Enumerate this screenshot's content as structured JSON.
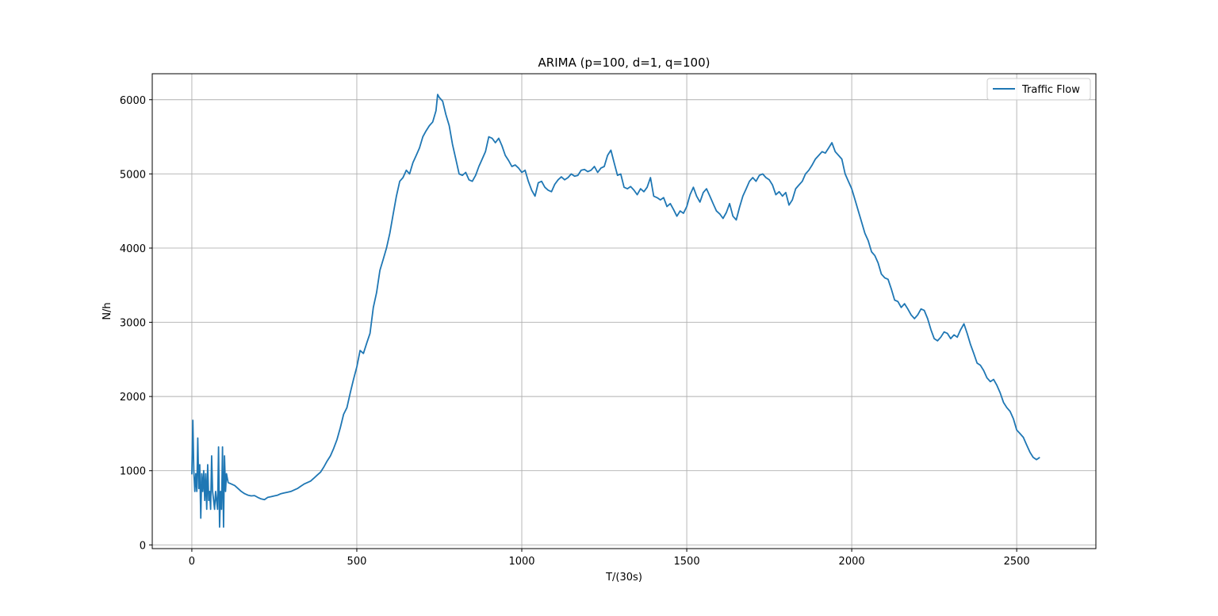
{
  "chart_data": {
    "type": "line",
    "title": "ARIMA (p=100, d=1, q=100)",
    "xlabel": "T/(30s)",
    "ylabel": "N/h",
    "xlim": [
      -120,
      2740
    ],
    "ylim": [
      -50,
      6350
    ],
    "xticks": [
      0,
      500,
      1000,
      1500,
      2000,
      2500
    ],
    "yticks": [
      0,
      1000,
      2000,
      3000,
      4000,
      5000,
      6000
    ],
    "xtick_labels": [
      "0",
      "500",
      "1000",
      "1500",
      "2000",
      "2500"
    ],
    "ytick_labels": [
      "0",
      "1000",
      "2000",
      "3000",
      "4000",
      "5000",
      "6000"
    ],
    "grid": true,
    "legend_position": "top-right",
    "series": [
      {
        "name": "Traffic Flow",
        "color": "#1f77b4",
        "points": [
          [
            0,
            950
          ],
          [
            3,
            1680
          ],
          [
            6,
            1000
          ],
          [
            9,
            720
          ],
          [
            12,
            960
          ],
          [
            15,
            720
          ],
          [
            18,
            1440
          ],
          [
            21,
            760
          ],
          [
            24,
            1080
          ],
          [
            27,
            360
          ],
          [
            30,
            960
          ],
          [
            33,
            720
          ],
          [
            36,
            1000
          ],
          [
            39,
            600
          ],
          [
            42,
            960
          ],
          [
            45,
            480
          ],
          [
            48,
            1080
          ],
          [
            51,
            600
          ],
          [
            54,
            720
          ],
          [
            57,
            480
          ],
          [
            60,
            1200
          ],
          [
            63,
            720
          ],
          [
            66,
            600
          ],
          [
            69,
            480
          ],
          [
            72,
            720
          ],
          [
            75,
            600
          ],
          [
            78,
            480
          ],
          [
            81,
            1320
          ],
          [
            84,
            240
          ],
          [
            87,
            720
          ],
          [
            90,
            480
          ],
          [
            93,
            1320
          ],
          [
            96,
            240
          ],
          [
            99,
            1200
          ],
          [
            102,
            720
          ],
          [
            105,
            960
          ],
          [
            110,
            840
          ],
          [
            120,
            820
          ],
          [
            130,
            800
          ],
          [
            140,
            760
          ],
          [
            150,
            720
          ],
          [
            160,
            690
          ],
          [
            170,
            670
          ],
          [
            180,
            660
          ],
          [
            190,
            665
          ],
          [
            200,
            640
          ],
          [
            210,
            620
          ],
          [
            220,
            610
          ],
          [
            230,
            640
          ],
          [
            240,
            650
          ],
          [
            250,
            660
          ],
          [
            260,
            670
          ],
          [
            270,
            690
          ],
          [
            280,
            700
          ],
          [
            290,
            710
          ],
          [
            300,
            720
          ],
          [
            310,
            740
          ],
          [
            320,
            760
          ],
          [
            330,
            790
          ],
          [
            340,
            820
          ],
          [
            350,
            840
          ],
          [
            360,
            860
          ],
          [
            370,
            900
          ],
          [
            380,
            940
          ],
          [
            390,
            980
          ],
          [
            400,
            1050
          ],
          [
            410,
            1130
          ],
          [
            420,
            1200
          ],
          [
            430,
            1300
          ],
          [
            440,
            1420
          ],
          [
            450,
            1580
          ],
          [
            460,
            1760
          ],
          [
            470,
            1850
          ],
          [
            480,
            2050
          ],
          [
            490,
            2230
          ],
          [
            500,
            2400
          ],
          [
            510,
            2620
          ],
          [
            520,
            2580
          ],
          [
            530,
            2720
          ],
          [
            540,
            2850
          ],
          [
            550,
            3200
          ],
          [
            560,
            3400
          ],
          [
            570,
            3700
          ],
          [
            580,
            3850
          ],
          [
            590,
            4000
          ],
          [
            600,
            4200
          ],
          [
            610,
            4450
          ],
          [
            620,
            4700
          ],
          [
            630,
            4900
          ],
          [
            640,
            4950
          ],
          [
            650,
            5050
          ],
          [
            660,
            5000
          ],
          [
            670,
            5150
          ],
          [
            680,
            5250
          ],
          [
            690,
            5350
          ],
          [
            700,
            5500
          ],
          [
            710,
            5580
          ],
          [
            720,
            5650
          ],
          [
            730,
            5700
          ],
          [
            740,
            5850
          ],
          [
            745,
            6070
          ],
          [
            750,
            6030
          ],
          [
            760,
            5980
          ],
          [
            770,
            5800
          ],
          [
            780,
            5650
          ],
          [
            790,
            5400
          ],
          [
            800,
            5200
          ],
          [
            810,
            5000
          ],
          [
            820,
            4980
          ],
          [
            830,
            5020
          ],
          [
            840,
            4920
          ],
          [
            850,
            4900
          ],
          [
            860,
            4980
          ],
          [
            870,
            5100
          ],
          [
            880,
            5200
          ],
          [
            890,
            5300
          ],
          [
            900,
            5500
          ],
          [
            910,
            5480
          ],
          [
            920,
            5420
          ],
          [
            930,
            5480
          ],
          [
            940,
            5380
          ],
          [
            950,
            5250
          ],
          [
            960,
            5180
          ],
          [
            970,
            5100
          ],
          [
            980,
            5120
          ],
          [
            990,
            5080
          ],
          [
            1000,
            5020
          ],
          [
            1010,
            5050
          ],
          [
            1020,
            4900
          ],
          [
            1030,
            4780
          ],
          [
            1040,
            4700
          ],
          [
            1050,
            4880
          ],
          [
            1060,
            4900
          ],
          [
            1070,
            4820
          ],
          [
            1080,
            4780
          ],
          [
            1090,
            4760
          ],
          [
            1100,
            4860
          ],
          [
            1110,
            4920
          ],
          [
            1120,
            4960
          ],
          [
            1130,
            4920
          ],
          [
            1140,
            4950
          ],
          [
            1150,
            5000
          ],
          [
            1160,
            4970
          ],
          [
            1170,
            4980
          ],
          [
            1180,
            5050
          ],
          [
            1190,
            5060
          ],
          [
            1200,
            5030
          ],
          [
            1210,
            5050
          ],
          [
            1220,
            5100
          ],
          [
            1230,
            5020
          ],
          [
            1240,
            5080
          ],
          [
            1250,
            5100
          ],
          [
            1260,
            5250
          ],
          [
            1270,
            5320
          ],
          [
            1280,
            5150
          ],
          [
            1290,
            4980
          ],
          [
            1300,
            5000
          ],
          [
            1310,
            4820
          ],
          [
            1320,
            4800
          ],
          [
            1330,
            4830
          ],
          [
            1340,
            4780
          ],
          [
            1350,
            4720
          ],
          [
            1360,
            4800
          ],
          [
            1370,
            4760
          ],
          [
            1380,
            4820
          ],
          [
            1390,
            4950
          ],
          [
            1400,
            4700
          ],
          [
            1410,
            4680
          ],
          [
            1420,
            4650
          ],
          [
            1430,
            4680
          ],
          [
            1440,
            4560
          ],
          [
            1450,
            4600
          ],
          [
            1460,
            4520
          ],
          [
            1470,
            4430
          ],
          [
            1480,
            4500
          ],
          [
            1490,
            4470
          ],
          [
            1500,
            4560
          ],
          [
            1510,
            4720
          ],
          [
            1520,
            4820
          ],
          [
            1530,
            4700
          ],
          [
            1540,
            4620
          ],
          [
            1550,
            4750
          ],
          [
            1560,
            4800
          ],
          [
            1570,
            4700
          ],
          [
            1580,
            4600
          ],
          [
            1590,
            4500
          ],
          [
            1600,
            4460
          ],
          [
            1610,
            4400
          ],
          [
            1620,
            4480
          ],
          [
            1630,
            4600
          ],
          [
            1640,
            4430
          ],
          [
            1650,
            4380
          ],
          [
            1660,
            4550
          ],
          [
            1670,
            4700
          ],
          [
            1680,
            4800
          ],
          [
            1690,
            4900
          ],
          [
            1700,
            4950
          ],
          [
            1710,
            4900
          ],
          [
            1720,
            4980
          ],
          [
            1730,
            5000
          ],
          [
            1740,
            4950
          ],
          [
            1750,
            4920
          ],
          [
            1760,
            4850
          ],
          [
            1770,
            4720
          ],
          [
            1780,
            4760
          ],
          [
            1790,
            4700
          ],
          [
            1800,
            4750
          ],
          [
            1810,
            4580
          ],
          [
            1820,
            4650
          ],
          [
            1830,
            4800
          ],
          [
            1840,
            4850
          ],
          [
            1850,
            4900
          ],
          [
            1860,
            5000
          ],
          [
            1870,
            5050
          ],
          [
            1880,
            5120
          ],
          [
            1890,
            5200
          ],
          [
            1900,
            5250
          ],
          [
            1910,
            5300
          ],
          [
            1920,
            5280
          ],
          [
            1930,
            5350
          ],
          [
            1940,
            5420
          ],
          [
            1950,
            5300
          ],
          [
            1960,
            5250
          ],
          [
            1970,
            5200
          ],
          [
            1980,
            5000
          ],
          [
            1990,
            4900
          ],
          [
            2000,
            4800
          ],
          [
            2010,
            4650
          ],
          [
            2020,
            4500
          ],
          [
            2030,
            4350
          ],
          [
            2040,
            4200
          ],
          [
            2050,
            4100
          ],
          [
            2060,
            3950
          ],
          [
            2070,
            3900
          ],
          [
            2080,
            3800
          ],
          [
            2090,
            3650
          ],
          [
            2100,
            3600
          ],
          [
            2110,
            3580
          ],
          [
            2120,
            3450
          ],
          [
            2130,
            3300
          ],
          [
            2140,
            3280
          ],
          [
            2150,
            3200
          ],
          [
            2160,
            3250
          ],
          [
            2170,
            3180
          ],
          [
            2180,
            3100
          ],
          [
            2190,
            3050
          ],
          [
            2200,
            3100
          ],
          [
            2210,
            3180
          ],
          [
            2220,
            3160
          ],
          [
            2230,
            3050
          ],
          [
            2240,
            2900
          ],
          [
            2250,
            2780
          ],
          [
            2260,
            2750
          ],
          [
            2270,
            2800
          ],
          [
            2280,
            2870
          ],
          [
            2290,
            2850
          ],
          [
            2300,
            2780
          ],
          [
            2310,
            2830
          ],
          [
            2320,
            2800
          ],
          [
            2330,
            2900
          ],
          [
            2340,
            2980
          ],
          [
            2350,
            2850
          ],
          [
            2360,
            2700
          ],
          [
            2370,
            2580
          ],
          [
            2380,
            2450
          ],
          [
            2390,
            2420
          ],
          [
            2400,
            2350
          ],
          [
            2410,
            2250
          ],
          [
            2420,
            2200
          ],
          [
            2430,
            2230
          ],
          [
            2440,
            2150
          ],
          [
            2450,
            2050
          ],
          [
            2460,
            1920
          ],
          [
            2470,
            1850
          ],
          [
            2480,
            1800
          ],
          [
            2490,
            1700
          ],
          [
            2500,
            1550
          ],
          [
            2510,
            1500
          ],
          [
            2520,
            1450
          ],
          [
            2530,
            1350
          ],
          [
            2540,
            1250
          ],
          [
            2550,
            1180
          ],
          [
            2560,
            1150
          ],
          [
            2570,
            1180
          ]
        ]
      }
    ]
  }
}
